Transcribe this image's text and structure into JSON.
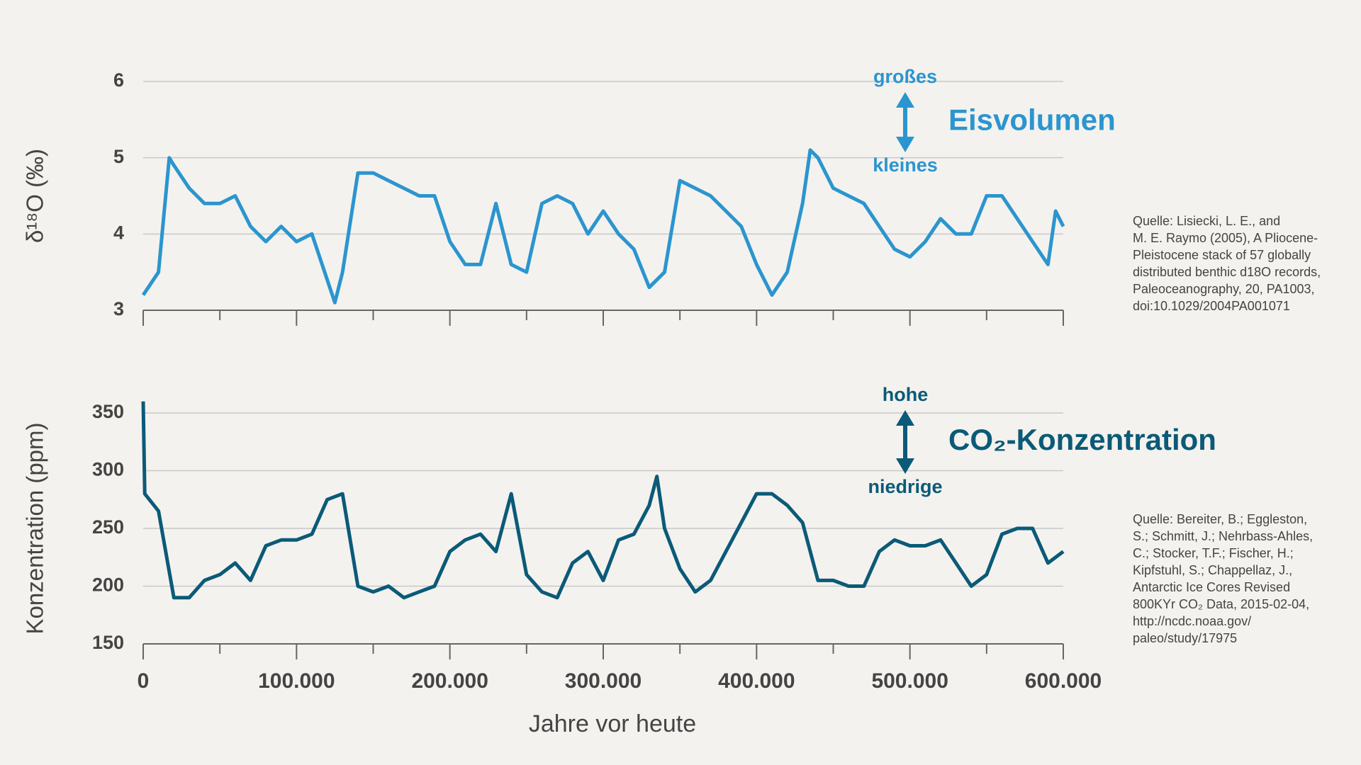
{
  "chart_data": [
    {
      "type": "line",
      "ylabel": "δ¹⁸O (‰)",
      "ylim": [
        3,
        6
      ],
      "yticks": [
        3,
        4,
        5,
        6
      ],
      "xlim": [
        0,
        600000
      ],
      "grid": true,
      "sharex": true,
      "x": [
        0,
        10000,
        17000,
        20000,
        30000,
        40000,
        50000,
        60000,
        70000,
        80000,
        90000,
        100000,
        110000,
        120000,
        125000,
        130000,
        140000,
        150000,
        160000,
        170000,
        180000,
        190000,
        200000,
        210000,
        220000,
        230000,
        240000,
        250000,
        260000,
        270000,
        280000,
        290000,
        300000,
        310000,
        320000,
        330000,
        340000,
        350000,
        360000,
        370000,
        380000,
        390000,
        400000,
        410000,
        420000,
        430000,
        435000,
        440000,
        450000,
        460000,
        470000,
        480000,
        490000,
        500000,
        510000,
        520000,
        530000,
        540000,
        550000,
        560000,
        570000,
        580000,
        590000,
        595000,
        600000
      ],
      "values": [
        3.2,
        3.5,
        5.0,
        4.9,
        4.6,
        4.4,
        4.4,
        4.5,
        4.1,
        3.9,
        4.1,
        3.9,
        4.0,
        3.4,
        3.1,
        3.5,
        4.8,
        4.8,
        4.7,
        4.6,
        4.5,
        4.5,
        3.9,
        3.6,
        3.6,
        4.4,
        3.6,
        3.5,
        4.4,
        4.5,
        4.4,
        4.0,
        4.3,
        4.0,
        3.8,
        3.3,
        3.5,
        4.7,
        4.6,
        4.5,
        4.3,
        4.1,
        3.6,
        3.2,
        3.5,
        4.4,
        5.1,
        5.0,
        4.6,
        4.5,
        4.4,
        4.1,
        3.8,
        3.7,
        3.9,
        4.2,
        4.0,
        4.0,
        4.5,
        4.5,
        4.2,
        3.9,
        3.6,
        4.3,
        4.1
      ],
      "color": "#2b95cf",
      "annotations": {
        "high": "großes",
        "low": "kleines",
        "label": "Eisvolumen"
      },
      "source": [
        "Quelle: Lisiecki, L. E., and",
        "M. E. Raymo (2005), A Pliocene-",
        "Pleistocene stack of 57 globally",
        "distributed benthic d18O records,",
        "Paleoceanography, 20, PA1003,",
        "doi:10.1029/2004PA001071"
      ]
    },
    {
      "type": "line",
      "ylabel": "Konzentration (ppm)",
      "xlabel": "Jahre vor heute",
      "ylim": [
        150,
        350
      ],
      "yticks": [
        150,
        200,
        250,
        300,
        350
      ],
      "xlim": [
        0,
        600000
      ],
      "grid": true,
      "xticks": [
        0,
        {
          "value": 100000,
          "label": "100.000"
        },
        {
          "value": 200000,
          "label": "200.000"
        },
        {
          "value": 300000,
          "label": "300.000"
        },
        {
          "value": 400000,
          "label": "400.000"
        },
        {
          "value": 500000,
          "label": "500.000"
        },
        {
          "value": 600000,
          "label": "600.000"
        }
      ],
      "minor_xticks": [
        50000,
        150000,
        250000,
        350000,
        450000,
        550000
      ],
      "x": [
        0,
        1000,
        10000,
        20000,
        30000,
        40000,
        50000,
        60000,
        70000,
        80000,
        90000,
        100000,
        110000,
        120000,
        130000,
        140000,
        150000,
        160000,
        170000,
        180000,
        190000,
        200000,
        210000,
        220000,
        230000,
        240000,
        250000,
        260000,
        270000,
        280000,
        290000,
        300000,
        310000,
        320000,
        330000,
        335000,
        340000,
        350000,
        360000,
        370000,
        380000,
        390000,
        400000,
        410000,
        420000,
        430000,
        440000,
        450000,
        460000,
        470000,
        480000,
        490000,
        500000,
        510000,
        520000,
        530000,
        540000,
        550000,
        560000,
        570000,
        580000,
        590000,
        600000
      ],
      "values": [
        360,
        280,
        265,
        190,
        190,
        205,
        210,
        220,
        205,
        235,
        240,
        240,
        245,
        275,
        280,
        200,
        195,
        200,
        190,
        195,
        200,
        230,
        240,
        245,
        230,
        280,
        210,
        195,
        190,
        220,
        230,
        205,
        240,
        245,
        270,
        295,
        250,
        215,
        195,
        205,
        230,
        255,
        280,
        280,
        270,
        255,
        205,
        205,
        200,
        200,
        230,
        240,
        235,
        235,
        240,
        220,
        200,
        210,
        245,
        250,
        250,
        220,
        230
      ],
      "color": "#0b5a78",
      "annotations": {
        "high": "hohe",
        "low": "niedrige",
        "label": "CO₂-Konzentration"
      },
      "source": [
        "Quelle: Bereiter, B.; Eggleston,",
        "S.; Schmitt, J.; Nehrbass-Ahles,",
        "C.; Stocker, T.F.; Fischer, H.;",
        "Kipfstuhl, S.; Chappellaz, J.,",
        "Antarctic Ice Cores Revised",
        "800KYr CO₂ Data, 2015-02-04,",
        "http://ncdc.noaa.gov/",
        "paleo/study/17975"
      ]
    }
  ]
}
